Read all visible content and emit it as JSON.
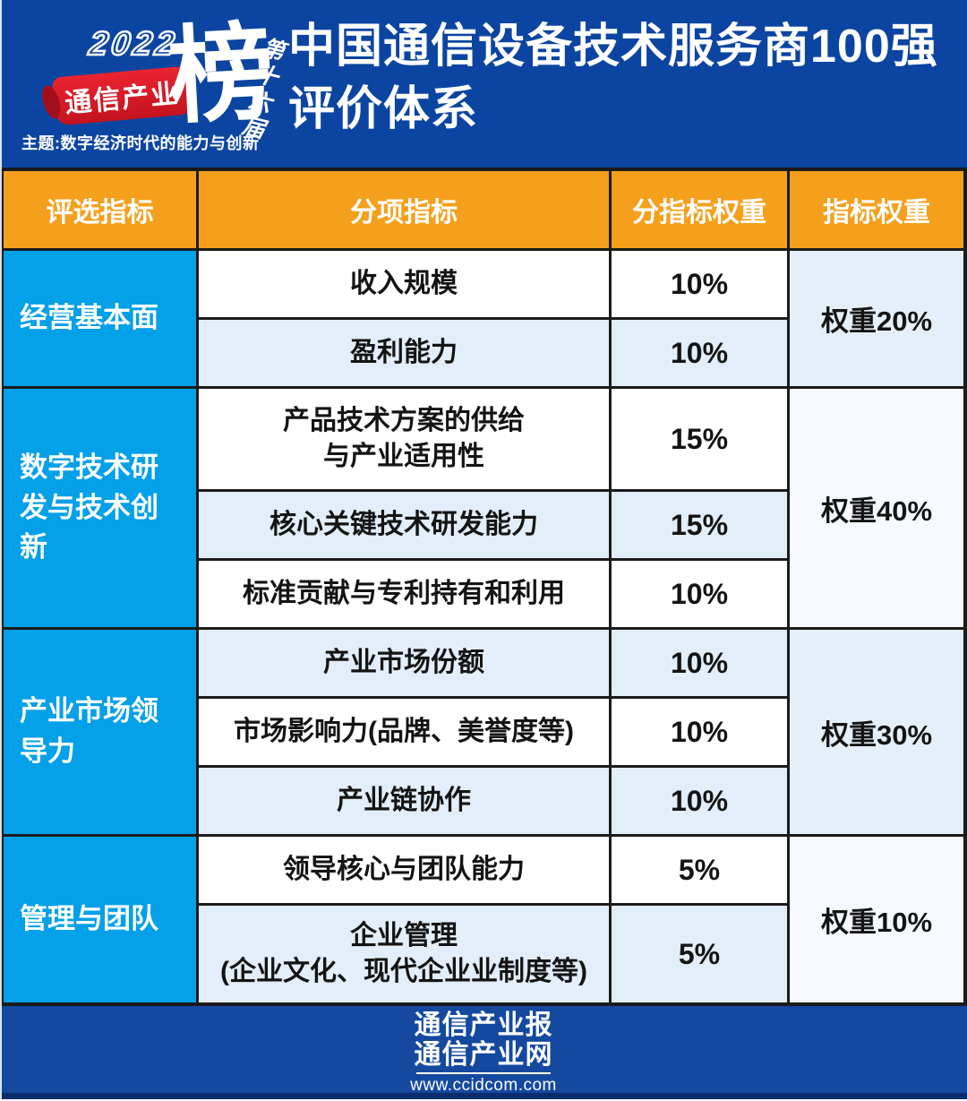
{
  "logo": {
    "year": "2022",
    "brand": "通信产业",
    "bang": "榜",
    "edition": "第十六届",
    "theme": "主题:数字经济时代的能力与创新"
  },
  "title": {
    "line1": "中国通信设备技术服务商100强",
    "line2": "评价体系"
  },
  "chart_data": {
    "type": "table",
    "title": "中国通信设备技术服务商100强评价体系",
    "headers": [
      "评选指标",
      "分项指标",
      "分指标权重",
      "指标权重"
    ],
    "groups": [
      {
        "category": "经营基本面",
        "weight_label": "权重20%",
        "rows": [
          {
            "name": "收入规模",
            "weight": "10%"
          },
          {
            "name": "盈利能力",
            "weight": "10%"
          }
        ]
      },
      {
        "category": "数字技术研发与技术创新",
        "weight_label": "权重40%",
        "rows": [
          {
            "name": "产品技术方案的供给\n与产业适用性",
            "weight": "15%"
          },
          {
            "name": "核心关键技术研发能力",
            "weight": "15%"
          },
          {
            "name": "标准贡献与专利持有和利用",
            "weight": "10%"
          }
        ]
      },
      {
        "category": "产业市场领导力",
        "weight_label": "权重30%",
        "rows": [
          {
            "name": "产业市场份额",
            "weight": "10%"
          },
          {
            "name": "市场影响力(品牌、美誉度等)",
            "weight": "10%"
          },
          {
            "name": "产业链协作",
            "weight": "10%"
          }
        ]
      },
      {
        "category": "管理与团队",
        "weight_label": "权重10%",
        "rows": [
          {
            "name": "领导核心与团队能力",
            "weight": "5%"
          },
          {
            "name": "企业管理\n(企业文化、现代企业业制度等)",
            "weight": "5%"
          }
        ]
      }
    ]
  },
  "footer": {
    "line1": "通信产业报",
    "line2": "通信产业网",
    "url": "www.ccidcom.com"
  },
  "colors": {
    "header_blue": "#0C45A1",
    "table_header_orange": "#F5A01D",
    "category_cyan": "#04A0E8",
    "row_light_blue": "#E2EEF9",
    "banner_red": "#E2202E",
    "footer_blue": "#15499F",
    "border_dark": "#1B1B1B"
  }
}
